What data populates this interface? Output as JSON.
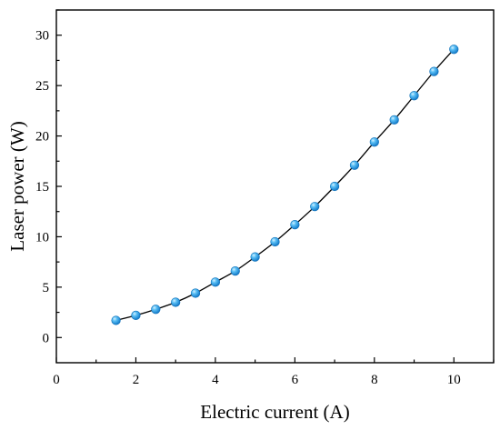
{
  "chart_data": {
    "type": "line",
    "xlabel": "Electric current (A)",
    "ylabel": "Laser power (W)",
    "xlim": [
      0,
      11
    ],
    "ylim": [
      -2.5,
      32.5
    ],
    "x_ticks": [
      0,
      2,
      4,
      6,
      8,
      10
    ],
    "y_ticks": [
      0,
      5,
      10,
      15,
      20,
      25,
      30
    ],
    "grid": false,
    "marker_color": "#1e9ee6",
    "line_color": "#000000",
    "series": [
      {
        "x": [
          1.5,
          2.0,
          2.5,
          3.0,
          3.5,
          4.0,
          4.5,
          5.0,
          5.5,
          6.0,
          6.5,
          7.0,
          7.5,
          8.0,
          8.5,
          9.0,
          9.5,
          10.0
        ],
        "values": [
          1.7,
          2.2,
          2.8,
          3.5,
          4.4,
          5.5,
          6.6,
          8.0,
          9.5,
          11.2,
          13.0,
          15.0,
          17.1,
          19.4,
          21.6,
          24.0,
          26.4,
          28.6
        ]
      }
    ]
  }
}
